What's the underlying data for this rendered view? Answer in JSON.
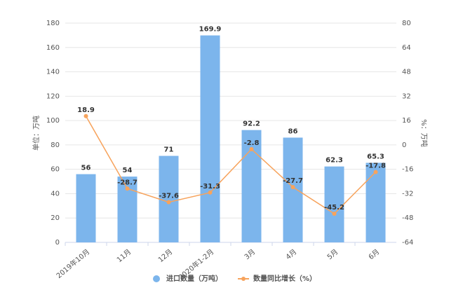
{
  "chart_data": {
    "type": "bar",
    "categories": [
      "2019年10月",
      "11月",
      "12月",
      "2020年1-2月",
      "3月",
      "4月",
      "5月",
      "6月"
    ],
    "series": [
      {
        "name": "进口数量（万吨）",
        "type": "bar",
        "color": "#7cb5ec",
        "values": [
          56,
          54,
          71,
          169.9,
          92.2,
          86,
          62.3,
          65.3
        ]
      },
      {
        "name": "数量同比增长（%）",
        "type": "line",
        "axis": "y2",
        "color": "#f7a35c",
        "values": [
          18.9,
          -28.7,
          -37.6,
          -31.3,
          -2.8,
          -27.7,
          -45.2,
          -17.8
        ]
      }
    ],
    "ylabel": "单位：万吨",
    "y2label": "%：万吨",
    "ylim": [
      0,
      180
    ],
    "yticks": [
      0,
      20,
      40,
      60,
      80,
      100,
      120,
      140,
      160,
      180
    ],
    "y2lim": [
      -64,
      80
    ],
    "y2ticks": [
      -64,
      -48,
      -32,
      -16,
      0,
      16,
      32,
      48,
      64,
      80
    ],
    "grid": true,
    "legend": "bottom"
  }
}
